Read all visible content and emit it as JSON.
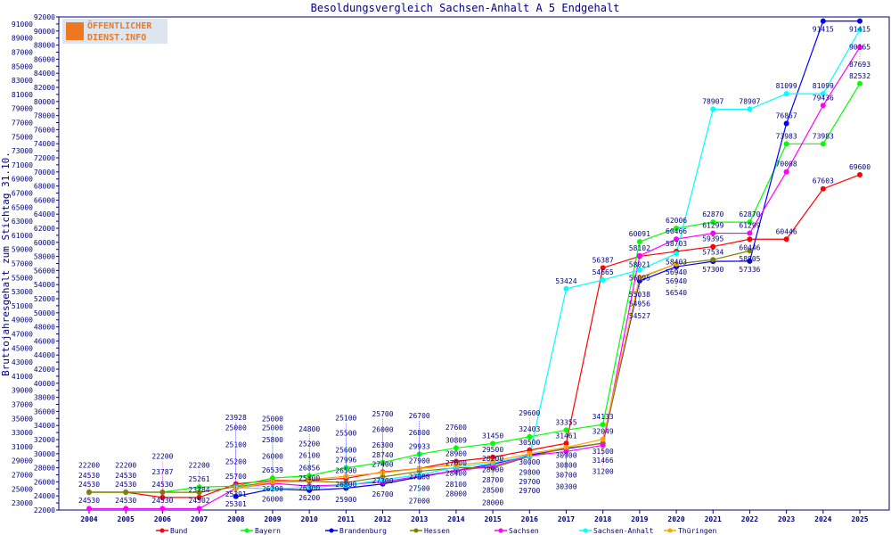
{
  "chart_data": {
    "type": "line",
    "title": "Besoldungsvergleich Sachsen-Anhalt A 5 Endgehalt",
    "ylabel": "Bruttojahresgehalt zum Stichtag 31.10.",
    "xlabel": "",
    "ylim": [
      22000,
      92000
    ],
    "ytick_step": 1000,
    "grid": false,
    "legend_placement": "bottom",
    "x": [
      2004,
      2005,
      2006,
      2007,
      2008,
      2009,
      2010,
      2011,
      2012,
      2013,
      2014,
      2015,
      2016,
      2017,
      2018,
      2019,
      2020,
      2021,
      2022,
      2023,
      2024,
      2025
    ],
    "series": [
      {
        "name": "Bund",
        "color": "#ff0000",
        "values": [
          24530,
          24530,
          23787,
          23784,
          25700,
          26200,
          26200,
          26500,
          27400,
          27900,
          28900,
          29500,
          30500,
          31461,
          56387,
          58021,
          58703,
          59395,
          60446,
          60446,
          67603,
          69600
        ]
      },
      {
        "name": "Bayern",
        "color": "#00ff00",
        "values": [
          24530,
          24530,
          24530,
          25261,
          25391,
          26539,
          26856,
          27996,
          28740,
          29933,
          30809,
          31450,
          32403,
          33355,
          34133,
          60091,
          62006,
          62870,
          62870,
          73983,
          73983,
          82532
        ]
      },
      {
        "name": "Brandenburg",
        "color": "#0000ff",
        "values": [
          null,
          null,
          null,
          null,
          23928,
          25000,
          24800,
          25100,
          25700,
          26700,
          27600,
          28500,
          29800,
          30700,
          31500,
          54527,
          56540,
          57300,
          57336,
          76867,
          91415,
          91415
        ]
      },
      {
        "name": "Hessen",
        "color": "#808000",
        "values": [
          24530,
          24530,
          24530,
          24502,
          25301,
          26000,
          26100,
          25900,
          26700,
          27500,
          28000,
          28000,
          29600,
          30800,
          31466,
          54956,
          56940,
          57534,
          58805,
          null,
          null,
          null
        ]
      },
      {
        "name": "Sachsen",
        "color": "#ff00ff",
        "values": [
          22200,
          22200,
          22200,
          22200,
          25100,
          25800,
          25400,
          25600,
          26000,
          26800,
          27600,
          28200,
          29700,
          30300,
          31200,
          58102,
          60466,
          61299,
          61299,
          70008,
          79436,
          87693
        ]
      },
      {
        "name": "Sachsen-Anhalt",
        "color": "#00ffff",
        "values": [
          null,
          null,
          null,
          null,
          25200,
          25000,
          25200,
          25500,
          26300,
          27000,
          28100,
          28700,
          29700,
          53424,
          54665,
          56095,
          58403,
          78907,
          78907,
          81099,
          81099,
          90165
        ]
      },
      {
        "name": "Thüringen",
        "color": "#ffa500",
        "values": [
          null,
          null,
          null,
          null,
          25000,
          26000,
          26300,
          26800,
          27300,
          27900,
          28400,
          28900,
          30000,
          30900,
          32049,
          55038,
          56940,
          null,
          null,
          null,
          null,
          null
        ]
      }
    ]
  },
  "logo": {
    "line1": "ÖFFENTLICHER",
    "line2": "DIENST.INFO"
  }
}
